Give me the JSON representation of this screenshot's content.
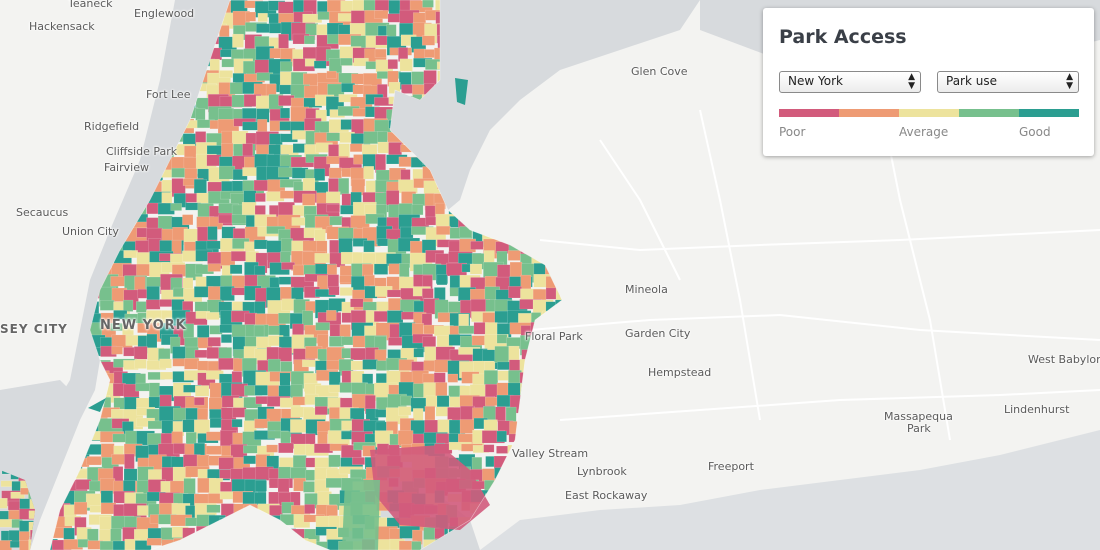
{
  "panel": {
    "title": "Park Access",
    "city_select": "New York",
    "metric_select": "Park use",
    "legend": {
      "colors": [
        "#d25b7c",
        "#ee9b74",
        "#ede39d",
        "#77c08d",
        "#2b9e91"
      ],
      "low": "Poor",
      "mid": "Average",
      "high": "Good"
    }
  },
  "places": {
    "teaneck": "Teaneck",
    "englewood": "Englewood",
    "hackensack": "Hackensack",
    "fort_lee": "Fort Lee",
    "ridgefield": "Ridgefield",
    "cliffside_park": "Cliffside Park",
    "fairview": "Fairview",
    "secaucus": "Secaucus",
    "union_city": "Union City",
    "jersey_city": "SEY CITY",
    "new_york": "NEW YORK",
    "glen_cove": "Glen Cove",
    "mineola": "Mineola",
    "garden_city": "Garden City",
    "floral_park": "Floral Park",
    "hempstead": "Hempstead",
    "west_babylon": "West Babylon",
    "massapequa_park_1": "Massapequa",
    "massapequa_park_2": "Park",
    "lindenhurst": "Lindenhurst",
    "valley_stream": "Valley Stream",
    "lynbrook": "Lynbrook",
    "freeport": "Freeport",
    "east_rockaway": "East Rockaway"
  }
}
